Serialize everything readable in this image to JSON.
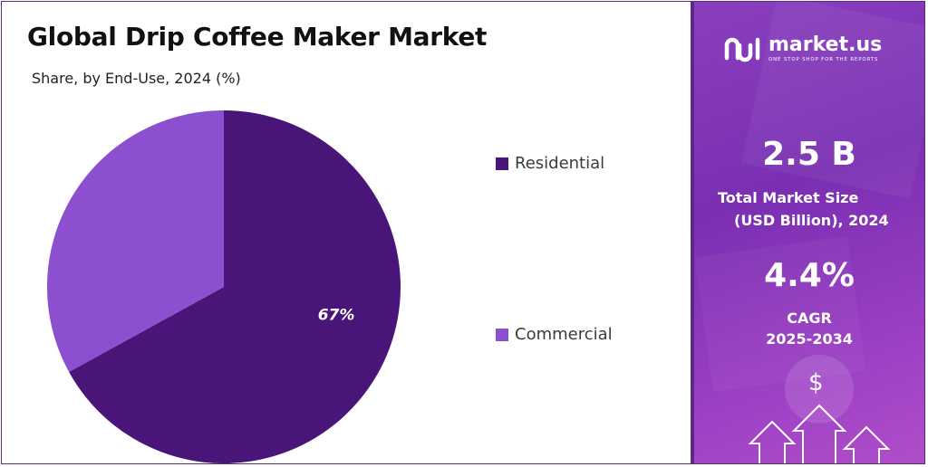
{
  "header": {
    "title": "Global Drip Coffee Maker Market",
    "subtitle": "Share, by End-Use, 2024 (%)"
  },
  "chart_data": {
    "type": "pie",
    "categories": [
      "Residential",
      "Commercial"
    ],
    "values": [
      67,
      33
    ],
    "data_labels": [
      "67%",
      ""
    ],
    "colors": [
      "#4a1578",
      "#8b4fcf"
    ],
    "legend_placement": "right"
  },
  "sidebar": {
    "brand_name": "market.us",
    "brand_tagline": "ONE STOP SHOP FOR THE REPORTS",
    "market_size_value": "2.5 B",
    "market_size_label_line1": "Total Market Size",
    "market_size_label_line2": "(USD Billion), 2024",
    "cagr_value": "4.4%",
    "cagr_label_line1": "CAGR",
    "cagr_label_line2": "2025-2034",
    "dollar_symbol": "$",
    "background_color": "#8a3fbf"
  }
}
